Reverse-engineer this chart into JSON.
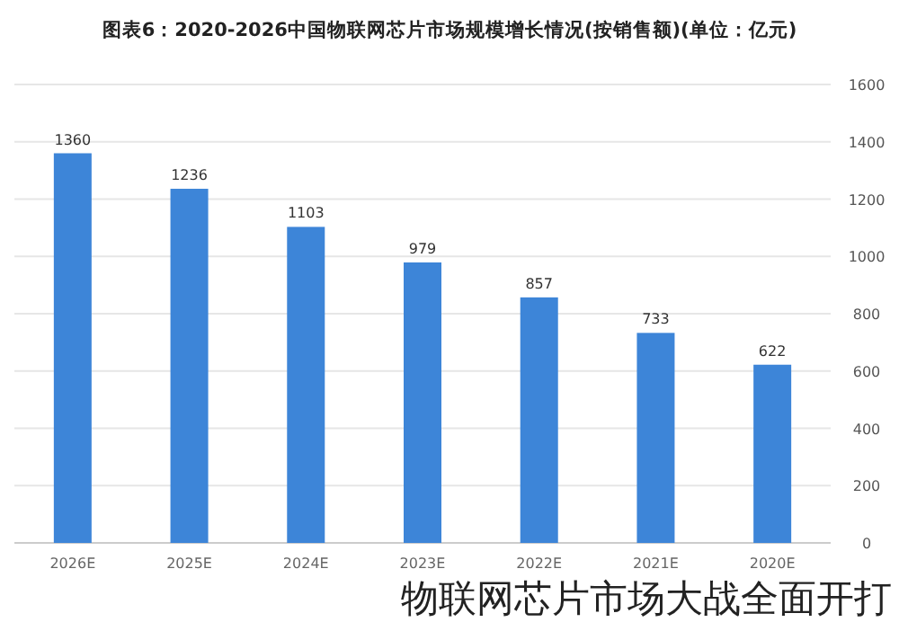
{
  "chart_data": {
    "type": "bar",
    "title": "图表6：2020-2026中国物联网芯片市场规模增长情况(按销售额)(单位：亿元)",
    "categories": [
      "2026E",
      "2025E",
      "2024E",
      "2023E",
      "2022E",
      "2021E",
      "2020E"
    ],
    "values": [
      1360,
      1236,
      1103,
      979,
      857,
      733,
      622
    ],
    "color": "#3d85d8",
    "ylim": [
      0,
      1600
    ],
    "yticks": [
      0,
      200,
      400,
      600,
      800,
      1000,
      1200,
      1400,
      1600
    ],
    "grid": "y",
    "data_labels": true,
    "annotations": [
      "物联网芯片市场大战全面开打"
    ]
  }
}
